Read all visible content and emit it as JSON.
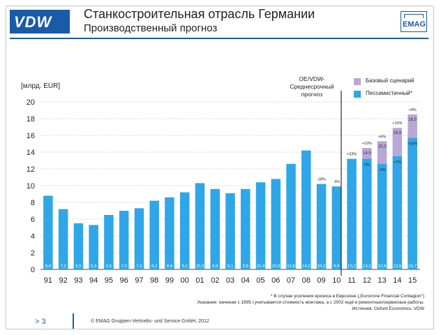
{
  "header": {
    "logo_left": "VDW",
    "title": "Станкостроительная отрасль Германии",
    "subtitle": "Производственный прогноз",
    "logo_right": "EMAG"
  },
  "footer": {
    "page": "> 3",
    "copyright": "© EMAG Gruppen-Vertriebs-  und Service GmbH, 2012"
  },
  "notes": {
    "line1": "* В случае  усиления  кризиса в Еврозоне  („Eurozone  Financial Contagion“)",
    "line2": "Указание: начиная  с 1995 г.учитывается  стоимость монтажа, а с 2002 ещё и ремонтные/сервисные  работы.",
    "line3": "Источник: Oxford Economics, VDW"
  },
  "forecast_label": "OE/VDW-\nСреднесрочный прогноз",
  "colors": {
    "bar": "#2fa6e8",
    "base_case": "#b9a8d6",
    "brand": "#1b5aa8",
    "grid": "#999999"
  },
  "chart_data": {
    "type": "bar",
    "ylabel": "[млрд. EUR]",
    "ylim": [
      0,
      20
    ],
    "yticks": [
      0,
      2,
      4,
      6,
      8,
      10,
      12,
      14,
      16,
      18,
      20
    ],
    "categories": [
      "91",
      "92",
      "93",
      "94",
      "95",
      "96",
      "97",
      "98",
      "99",
      "00",
      "01",
      "02",
      "03",
      "04",
      "05",
      "06",
      "07",
      "08",
      "09",
      "10",
      "11",
      "12",
      "13",
      "14",
      "15"
    ],
    "series": [
      {
        "name": "Пессимистичный*",
        "values": [
          8.8,
          7.2,
          5.5,
          5.3,
          6.5,
          7.0,
          7.3,
          8.2,
          8.6,
          9.2,
          10.3,
          9.6,
          9.1,
          9.6,
          10.4,
          10.8,
          12.6,
          14.2,
          10.2,
          9.9,
          13.2,
          13.2,
          12.6,
          13.5,
          15.7
        ],
        "labels": [
          "8,8",
          "7,2",
          "5,5",
          "5,3",
          "6,5",
          "7,0",
          "7,3",
          "8,2",
          "8,6",
          "9,2",
          "10,3",
          "9,6",
          "9,1",
          "9,6",
          "10,4",
          "10,8",
          "12,6",
          "14,2",
          "10,2",
          "9,9",
          "13,2",
          "13,2",
          "12,6",
          "13,5",
          "15,7"
        ]
      },
      {
        "name": "Базовый сценарий",
        "values": [
          null,
          null,
          null,
          null,
          null,
          null,
          null,
          null,
          null,
          null,
          null,
          null,
          null,
          null,
          null,
          null,
          null,
          null,
          null,
          null,
          null,
          14.5,
          15.3,
          16.9,
          18.5
        ],
        "labels": [
          "",
          "",
          "",
          "",
          "",
          "",
          "",
          "",
          "",
          "",
          "",
          "",
          "",
          "",
          "",
          "",
          "",
          "",
          "",
          "",
          "",
          "14,5",
          "15,3",
          "16,9",
          "18,5"
        ]
      }
    ],
    "annotations_pessimistic": [
      "",
      "",
      "",
      "",
      "",
      "",
      "",
      "",
      "",
      "",
      "",
      "",
      "",
      "",
      "",
      "",
      "",
      "",
      "-28%",
      "-3%",
      "+33%",
      "0%",
      "-5%",
      "+7%",
      "+16%"
    ],
    "annotations_base": [
      "",
      "",
      "",
      "",
      "",
      "",
      "",
      "",
      "",
      "",
      "",
      "",
      "",
      "",
      "",
      "",
      "",
      "",
      "",
      "",
      "",
      "+10%",
      "+6%",
      "+10%",
      "+9%"
    ],
    "legend": "top-right",
    "grid": true
  }
}
